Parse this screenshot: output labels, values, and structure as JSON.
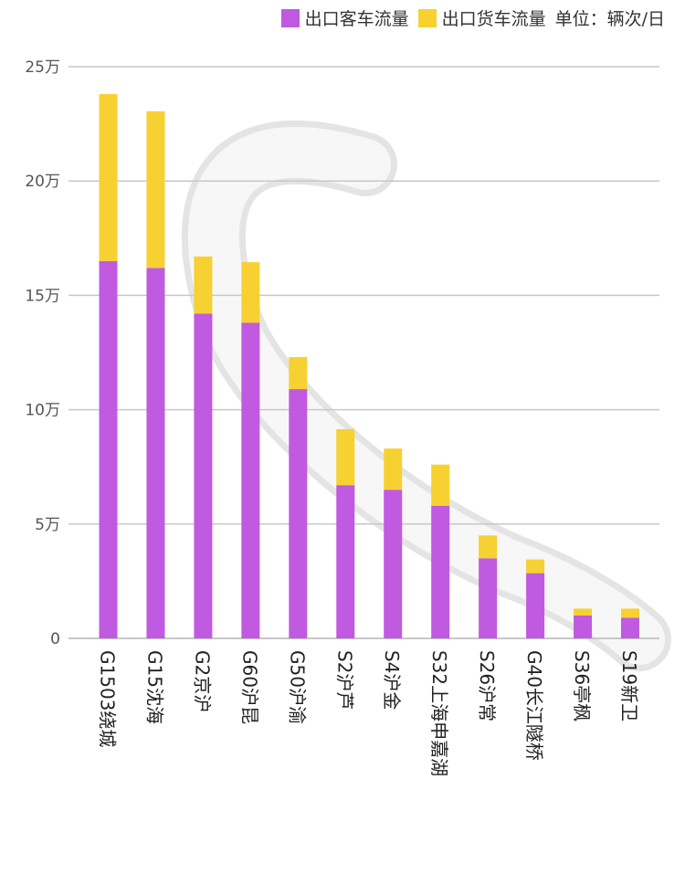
{
  "legend": {
    "passenger_label": "出口客车流量",
    "freight_label": "出口货车流量",
    "unit_label": "单位：辆次/日"
  },
  "colors": {
    "passenger": "#c05ae0",
    "freight": "#f7d131",
    "grid": "#c8c8c8",
    "road": "#d9d9d9"
  },
  "chart_data": {
    "type": "bar",
    "stacked": true,
    "categories": [
      "G1503绕城",
      "G15沈海",
      "G2京沪",
      "G60沪昆",
      "G50沪渝",
      "S2沪芦",
      "S4沪金",
      "S32上海申嘉湖",
      "S26沪常",
      "G40长江隧桥",
      "S36亭枫",
      "S19新卫"
    ],
    "series": [
      {
        "name": "出口客车流量",
        "values": [
          165000,
          162000,
          142000,
          138000,
          109000,
          67000,
          65000,
          58000,
          35000,
          28500,
          10000,
          9000
        ]
      },
      {
        "name": "出口货车流量",
        "values": [
          73000,
          68500,
          25000,
          26500,
          14000,
          24500,
          18000,
          18000,
          10000,
          6000,
          3000,
          4000
        ]
      }
    ],
    "ylim": [
      0,
      250000
    ],
    "yticks": [
      {
        "value": 0,
        "label": "0"
      },
      {
        "value": 50000,
        "label": "5万"
      },
      {
        "value": 100000,
        "label": "10万"
      },
      {
        "value": 150000,
        "label": "15万"
      },
      {
        "value": 200000,
        "label": "20万"
      },
      {
        "value": 250000,
        "label": "25万"
      }
    ],
    "grid": true,
    "legend_position": "top-right"
  }
}
